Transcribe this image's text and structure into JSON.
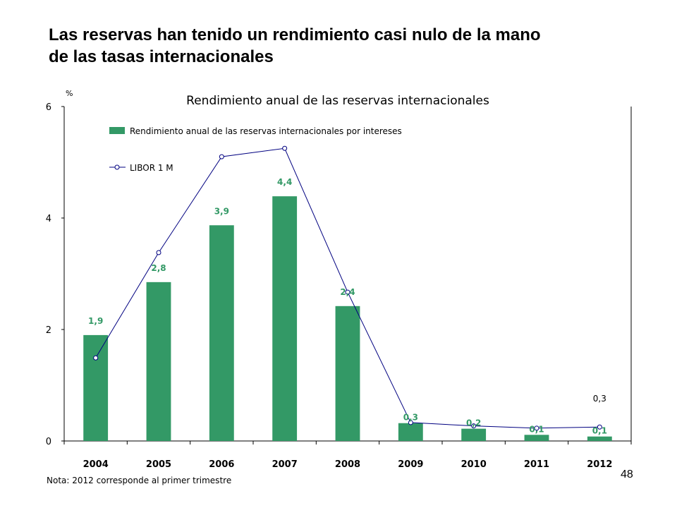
{
  "slide": {
    "title_line1": "Las reservas han tenido un rendimiento casi nulo de la mano",
    "title_line2": "de las tasas internacionales",
    "note": "Nota: 2012 corresponde al primer trimestre",
    "page_number": "48"
  },
  "chart_data": {
    "type": "bar",
    "title": "Rendimiento anual de las reservas internacionales",
    "ylabel": "%",
    "ylim": [
      0,
      6
    ],
    "yticks": [
      "0",
      "2",
      "4",
      "6"
    ],
    "grid": false,
    "legend_position": "top-left",
    "categories": [
      "2004",
      "2005",
      "2006",
      "2007",
      "2008",
      "2009",
      "2010",
      "2011",
      "2012"
    ],
    "series": [
      {
        "name": "Rendimiento anual de las reservas internacionales por intereses",
        "kind": "bar",
        "color": "#339966",
        "values": [
          1.9,
          2.85,
          3.87,
          4.39,
          2.42,
          0.32,
          0.22,
          0.11,
          0.08
        ],
        "labels": [
          "1,9",
          "2,8",
          "3,9",
          "4,4",
          "2,4",
          "0,3",
          "0,2",
          "0,1",
          "0,1"
        ]
      },
      {
        "name": "LIBOR 1 M",
        "kind": "line",
        "color": "#000080",
        "values": [
          1.49,
          3.38,
          5.1,
          5.25,
          2.67,
          0.33,
          0.27,
          0.23,
          0.25
        ],
        "annotation": {
          "category": "2012",
          "label": "0,3"
        }
      }
    ]
  }
}
